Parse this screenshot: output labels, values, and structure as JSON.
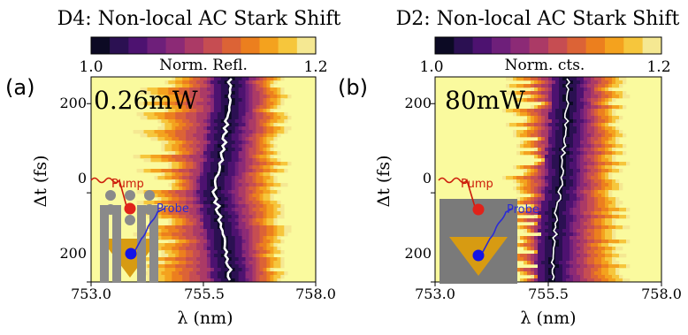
{
  "colormap": [
    "#0c0a24",
    "#2b1052",
    "#4d1270",
    "#6e1f7a",
    "#8c2a76",
    "#ab3a66",
    "#c64d52",
    "#dc6336",
    "#ec7f1e",
    "#f4a21e",
    "#f6c63c",
    "#f5e892"
  ],
  "background": "#fafa9e",
  "chart_data": [
    {
      "type": "heatmap",
      "panel_label": "(a)",
      "title": "D4: Non-local AC Stark Shift",
      "annotation": "0.26mW",
      "colorbar_label": "Norm. Refl.",
      "colorbar_ticks": [
        "1.0",
        "1.2"
      ],
      "colorbar_range": [
        1.0,
        1.2
      ],
      "xlabel": "λ (nm)",
      "ylabel": "Δt (fs)",
      "xticks": [
        "753.0",
        "755.5",
        "758.0"
      ],
      "yticks": [
        "200",
        "0",
        "200"
      ],
      "xlim": [
        753.0,
        758.0
      ],
      "ylim": [
        -200,
        260
      ],
      "center_curve": {
        "dt": [
          -260,
          -200,
          -150,
          -100,
          -50,
          0,
          50,
          100,
          150,
          200,
          260
        ],
        "lambda_nm": [
          756.05,
          756.1,
          756.05,
          755.95,
          755.85,
          755.75,
          755.85,
          755.95,
          756.0,
          756.05,
          756.1
        ]
      },
      "dip_fwhm_nm": 0.75,
      "red_edge_nm": 757.25,
      "blue_edge_nm": 754.4,
      "inset": {
        "pump_label": "Pump",
        "probe_label": "Probe",
        "type": "pillar_triangle"
      }
    },
    {
      "type": "heatmap",
      "panel_label": "(b)",
      "title": "D2: Non-local AC Stark Shift",
      "annotation": "80mW",
      "colorbar_label": "Norm. cts.",
      "colorbar_ticks": [
        "1.0",
        "1.2"
      ],
      "colorbar_range": [
        1.0,
        1.2
      ],
      "xlabel": "λ (nm)",
      "ylabel": "Δt (fs)",
      "xticks": [
        "753.0",
        "755.5",
        "758.0"
      ],
      "yticks": [
        "200",
        "0",
        "200"
      ],
      "xlim": [
        753.0,
        758.0
      ],
      "ylim": [
        -200,
        260
      ],
      "center_curve": {
        "dt": [
          -260,
          -200,
          -150,
          -100,
          -50,
          0,
          50,
          100,
          150,
          200,
          260
        ],
        "lambda_nm": [
          755.6,
          755.6,
          755.62,
          755.65,
          755.68,
          755.75,
          755.8,
          755.85,
          755.9,
          755.92,
          755.95
        ]
      },
      "dip_fwhm_nm": 0.7,
      "red_edge_nm": 757.1,
      "blue_edge_nm": 754.9,
      "inset": {
        "pump_label": "Pump",
        "probe_label": "Probe",
        "type": "triangle"
      }
    }
  ]
}
